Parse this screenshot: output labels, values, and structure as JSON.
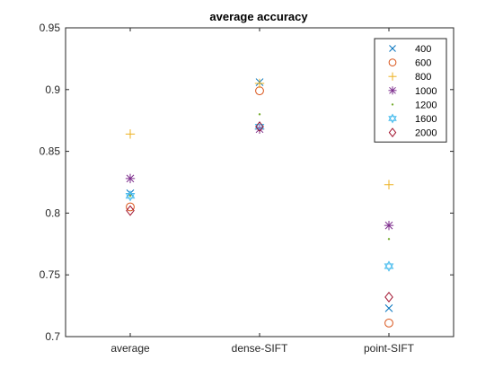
{
  "chart_data": {
    "type": "scatter",
    "title": "average accuracy",
    "xlabel": "",
    "ylabel": "",
    "categories": [
      "average",
      "dense-SIFT",
      "point-SIFT"
    ],
    "ylim": [
      0.7,
      0.95
    ],
    "yticks": [
      "0.7",
      "0.75",
      "0.8",
      "0.85",
      "0.9",
      "0.95"
    ],
    "grid": false,
    "legend_position": "top-right",
    "series": [
      {
        "name": "400",
        "marker": "x",
        "color": "#0072BD",
        "values": [
          0.816,
          0.906,
          0.723
        ]
      },
      {
        "name": "600",
        "marker": "circle",
        "color": "#D95319",
        "values": [
          0.805,
          0.899,
          0.711
        ]
      },
      {
        "name": "800",
        "marker": "plus",
        "color": "#EDB120",
        "values": [
          0.864,
          0.905,
          0.823
        ]
      },
      {
        "name": "1000",
        "marker": "asterisk",
        "color": "#7E2F8E",
        "values": [
          0.828,
          0.868,
          0.79
        ]
      },
      {
        "name": "1200",
        "marker": "point",
        "color": "#77AC30",
        "values": [
          0.814,
          0.88,
          0.779
        ]
      },
      {
        "name": "1600",
        "marker": "hexagram",
        "color": "#4DBEEE",
        "values": [
          0.814,
          0.87,
          0.757
        ]
      },
      {
        "name": "2000",
        "marker": "diamond",
        "color": "#A2142F",
        "values": [
          0.802,
          0.87,
          0.732
        ]
      }
    ]
  }
}
